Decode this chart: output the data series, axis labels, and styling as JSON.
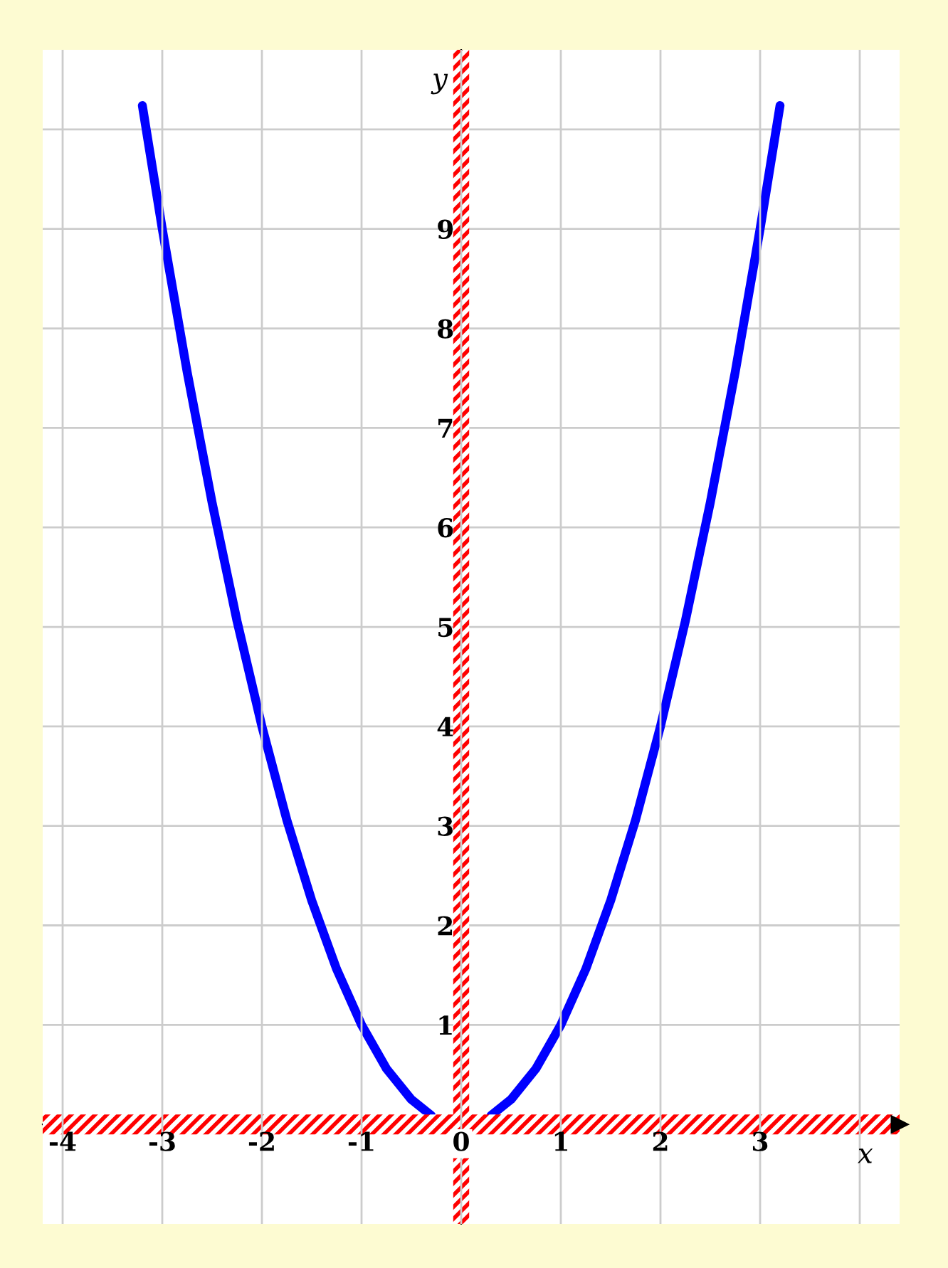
{
  "chart_data": {
    "type": "line",
    "xlabel": "x",
    "ylabel": "y",
    "x": [
      -3.2,
      -3,
      -2.75,
      -2.5,
      -2.25,
      -2,
      -1.75,
      -1.5,
      -1.25,
      -1,
      -0.75,
      -0.5,
      -0.3,
      0,
      0.3,
      0.5,
      0.75,
      1,
      1.25,
      1.5,
      1.75,
      2,
      2.25,
      2.5,
      2.75,
      3,
      3.2
    ],
    "series": [
      {
        "color": "#0000ff",
        "values": [
          10.24,
          9,
          7.56,
          6.25,
          5.06,
          4,
          3.06,
          2.25,
          1.56,
          1,
          0.56,
          0.25,
          0.09,
          null,
          0.09,
          0.25,
          0.56,
          1,
          1.56,
          2.25,
          3.06,
          4,
          5.06,
          6.25,
          7.56,
          9,
          10.24
        ]
      }
    ],
    "xlim": [
      -4.2,
      4.4
    ],
    "ylim": [
      -1,
      10.8
    ],
    "xticks": [
      -4,
      -3,
      -2,
      -1,
      {
        "value": 0,
        "label": "0"
      },
      1,
      2,
      3,
      {
        "value": 4,
        "label": null
      }
    ],
    "yticks": [
      1,
      2,
      3,
      4,
      5,
      6,
      7,
      8,
      9,
      {
        "value": 10,
        "label": null
      }
    ],
    "grid": true,
    "marker": "none",
    "line_style": "solid",
    "bands": [
      {
        "axis": "x",
        "from": -0.08,
        "to": 0.08,
        "color": "#ff0000"
      },
      {
        "axis": "y",
        "from": -0.1,
        "to": 0.1,
        "color": "#ff0000"
      }
    ]
  }
}
